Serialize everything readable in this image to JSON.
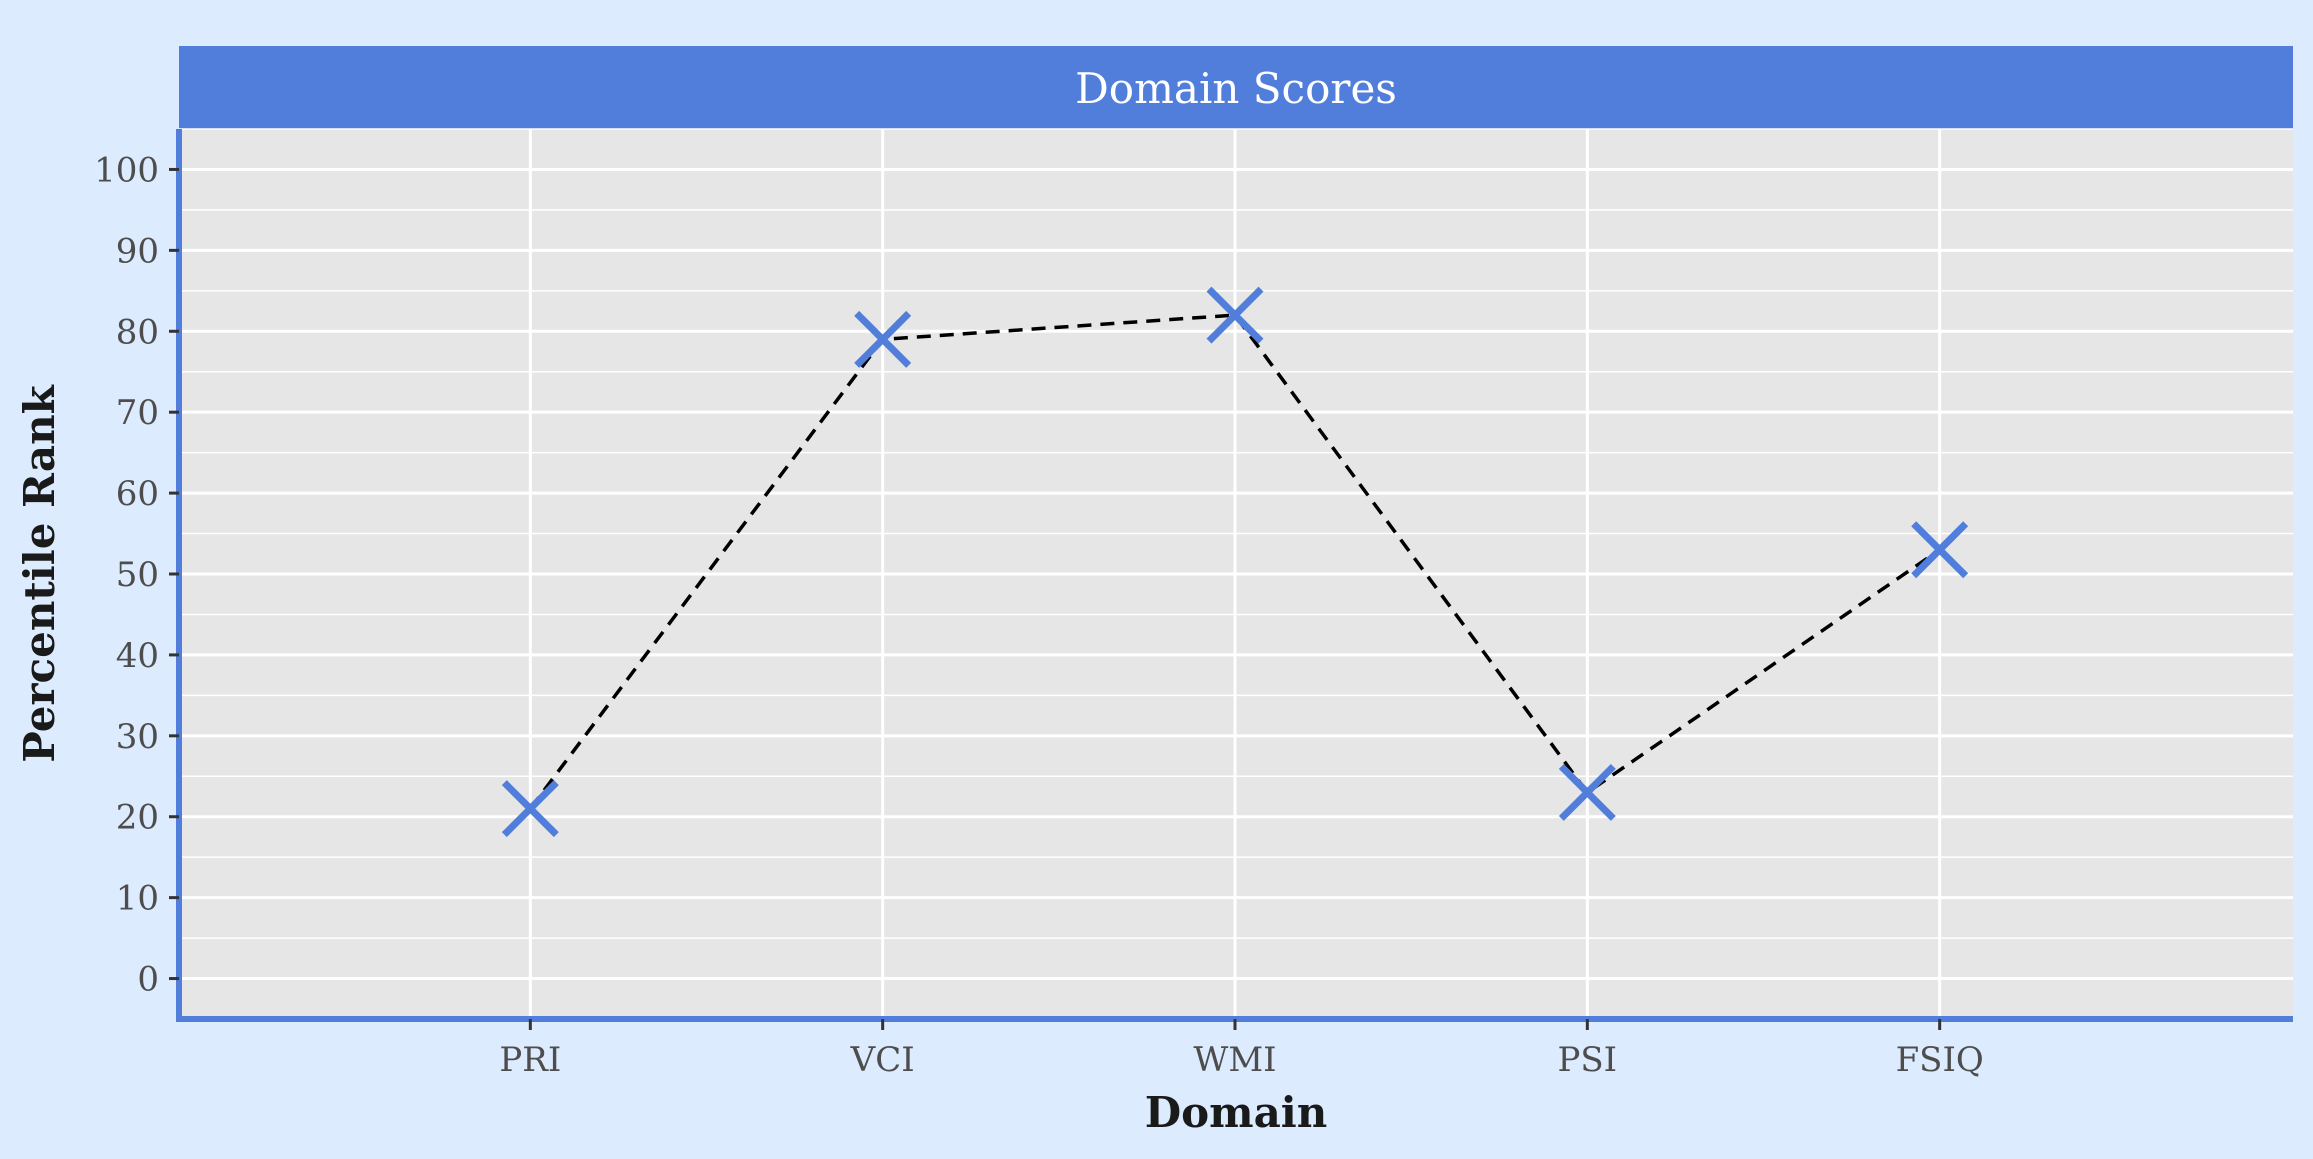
{
  "colors": {
    "background": "#ddebff",
    "panel": "#e6e6e6",
    "grid": "#ffffff",
    "accent": "#527edb",
    "line": "#000000",
    "tick_text": "#4d4d4d",
    "title_text": "#ffffff"
  },
  "chart_data": {
    "type": "line",
    "title": "Domain Scores",
    "xlabel": "Domain",
    "ylabel": "Percentile Rank",
    "categories": [
      "PRI",
      "VCI",
      "WMI",
      "PSI",
      "FSIQ"
    ],
    "series": [
      {
        "values": [
          21,
          79,
          82,
          23,
          53
        ],
        "marker": "x",
        "line_style": "dashed"
      }
    ],
    "ylim": [
      -5,
      105
    ],
    "yticks": [
      "0",
      "10",
      "20",
      "30",
      "40",
      "50",
      "60",
      "70",
      "80",
      "90",
      "100"
    ],
    "grid": true
  }
}
